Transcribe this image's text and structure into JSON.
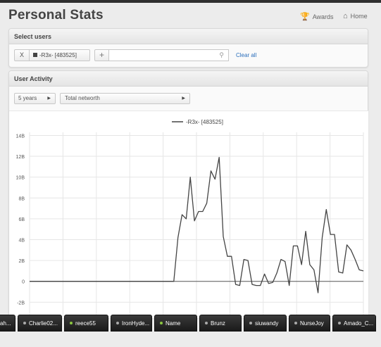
{
  "header": {
    "title": "Personal Stats",
    "awards_label": "Awards",
    "home_label": "Home"
  },
  "select_users": {
    "heading": "Select users",
    "remove_label": "X",
    "selected_user": "-R3x- [483525]",
    "add_label": "+",
    "search_value": "",
    "search_placeholder": "",
    "clear_all_label": "Clear all"
  },
  "user_activity": {
    "heading": "User Activity",
    "period": "5 years",
    "metric": "Total networth"
  },
  "chart_data": {
    "type": "line",
    "legend": "-R3x- [483525]",
    "legend_position": "top-center",
    "grid": true,
    "yticks": [
      "14B",
      "12B",
      "10B",
      "8B",
      "6B",
      "4B",
      "2B",
      "0",
      "-2B"
    ],
    "ylim": [
      -3.6,
      14.3
    ],
    "series": [
      {
        "name": "-R3x- [483525]",
        "color": "#444444",
        "values": [
          0,
          0,
          0,
          0,
          0,
          0,
          0,
          0,
          0,
          0,
          0,
          0,
          0,
          0,
          0,
          0,
          0,
          0,
          0,
          0,
          0,
          0,
          0,
          0,
          0,
          0,
          0,
          0,
          0,
          0,
          0,
          0,
          0,
          0,
          0,
          0,
          4.2,
          6.4,
          6.0,
          10.0,
          5.8,
          6.7,
          6.7,
          7.5,
          10.6,
          9.8,
          11.9,
          4.3,
          2.4,
          2.4,
          -0.3,
          -0.4,
          2.1,
          2.0,
          -0.3,
          -0.4,
          -0.4,
          0.7,
          -0.2,
          -0.1,
          0.8,
          2.1,
          1.9,
          -0.4,
          3.4,
          3.4,
          1.6,
          4.8,
          1.6,
          1.1,
          -1.1,
          4.2,
          6.9,
          4.5,
          4.5,
          0.9,
          0.8,
          3.5,
          3.0,
          2.1,
          1.1,
          1.0
        ]
      }
    ]
  },
  "taskbar": {
    "items": [
      {
        "label": "ah...",
        "online": false
      },
      {
        "label": "Charlie02...",
        "online": false
      },
      {
        "label": "reece55",
        "online": true
      },
      {
        "label": "IronHyde...",
        "online": false
      },
      {
        "label": "Name",
        "online": true
      },
      {
        "label": "Brunz",
        "online": false
      },
      {
        "label": "siuwandy",
        "online": false
      },
      {
        "label": "NurseJoy",
        "online": false
      },
      {
        "label": "Amado_C...",
        "online": false
      }
    ]
  }
}
